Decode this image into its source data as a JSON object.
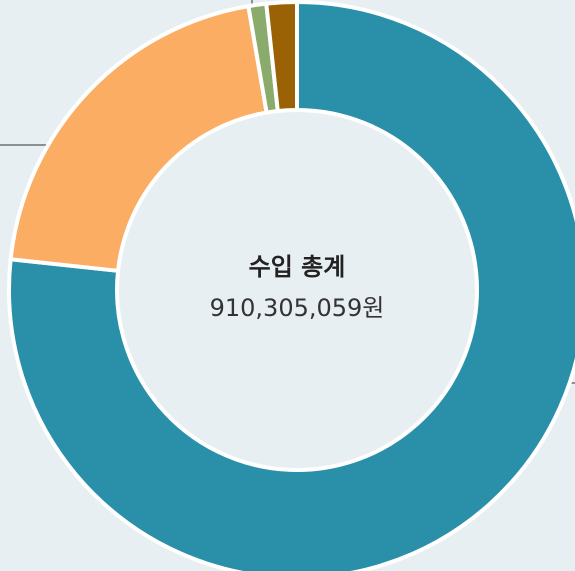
{
  "chart_data": {
    "type": "donut",
    "center_title": "수입 총계",
    "center_value": "910,305,059원",
    "values": [
      76.7,
      20.6,
      1.0,
      1.7
    ],
    "colors": [
      "#2a8fa8",
      "#fbad63",
      "#8aab6c",
      "#9a6205"
    ]
  }
}
